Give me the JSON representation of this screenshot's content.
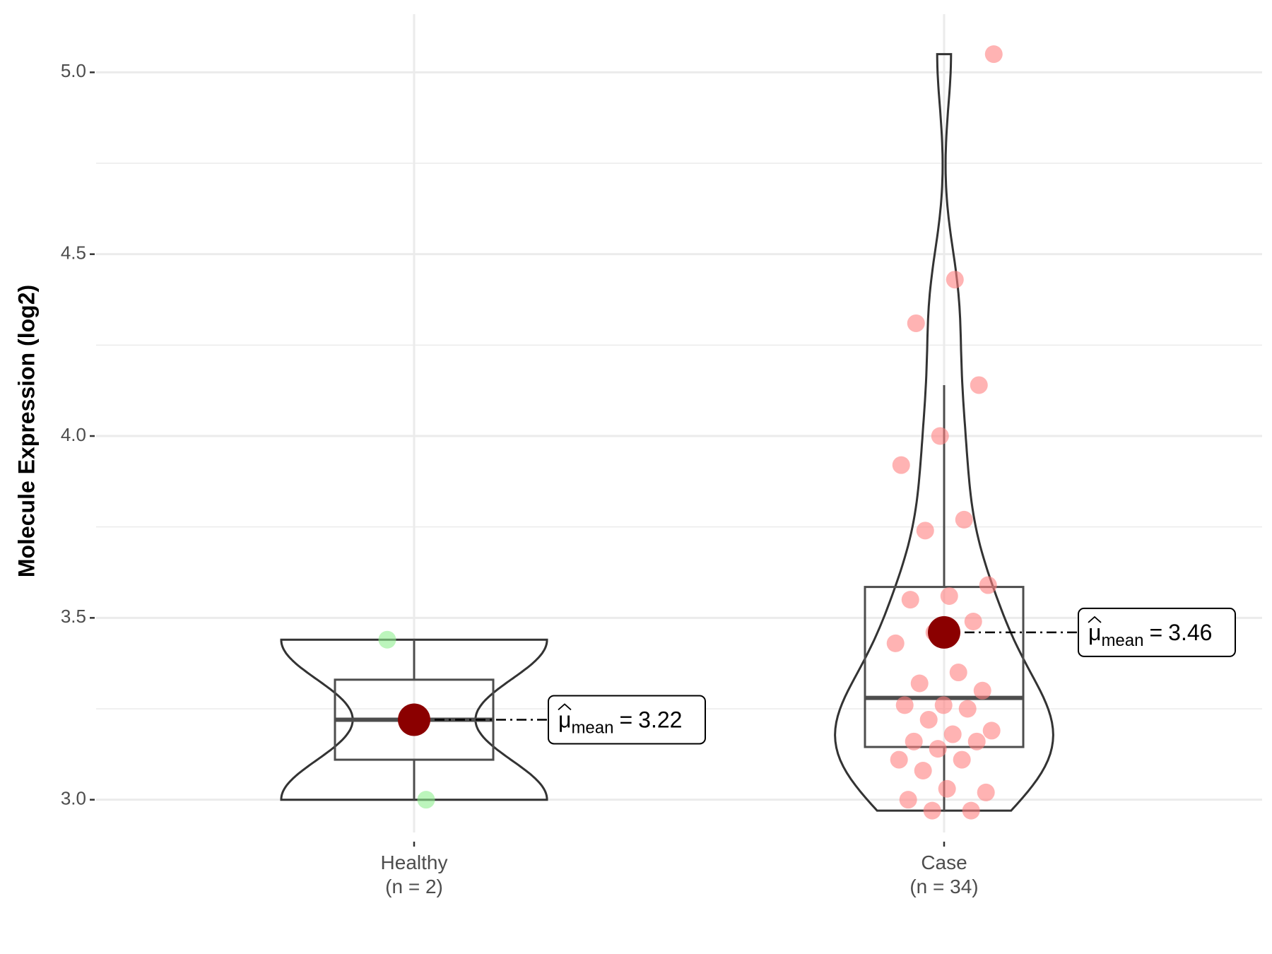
{
  "chart_data": {
    "type": "violin",
    "y_label": "Molecule Expression (log2)",
    "categories": [
      "Healthy",
      "Case"
    ],
    "category_notes": [
      "(n = 2)",
      "(n = 34)"
    ],
    "groups": [
      {
        "color": "#90ee90",
        "values": [
          3.0,
          3.44
        ],
        "box": {
          "whisker_low": 3.0,
          "q1": 3.11,
          "median": 3.22,
          "q3": 3.33,
          "whisker_high": 3.44
        },
        "mean": 3.22
      },
      {
        "color": "#ff8080",
        "values": [
          5.05,
          4.43,
          4.31,
          4.14,
          4.0,
          3.92,
          3.77,
          3.74,
          3.59,
          3.56,
          3.55,
          3.49,
          3.46,
          3.43,
          3.35,
          3.32,
          3.3,
          3.26,
          3.26,
          3.25,
          3.22,
          3.19,
          3.18,
          3.16,
          3.16,
          3.14,
          3.11,
          3.11,
          3.08,
          3.02,
          3.03,
          3.0,
          2.97,
          2.97
        ],
        "box": {
          "whisker_low": 2.97,
          "q1": 3.145,
          "median": 3.28,
          "q3": 3.585,
          "whisker_high": 4.14
        },
        "mean": 3.46
      }
    ],
    "mean_color": "#8b0000",
    "mean_label_symbol": "μ",
    "mean_label_subscript": "mean",
    "mean_label_equals": "=",
    "ylim": [
      2.91,
      5.16
    ],
    "yticks": [
      {
        "value": 3,
        "label": "3.0"
      },
      {
        "value": 3.5,
        "label": "3.5"
      },
      {
        "value": 4,
        "label": "4.0"
      },
      {
        "value": 4.5,
        "label": "4.5"
      },
      {
        "value": 5,
        "label": "5.0"
      }
    ],
    "minor_yticks": [
      3.25,
      3.75,
      4.25,
      4.75
    ],
    "grid": true
  }
}
